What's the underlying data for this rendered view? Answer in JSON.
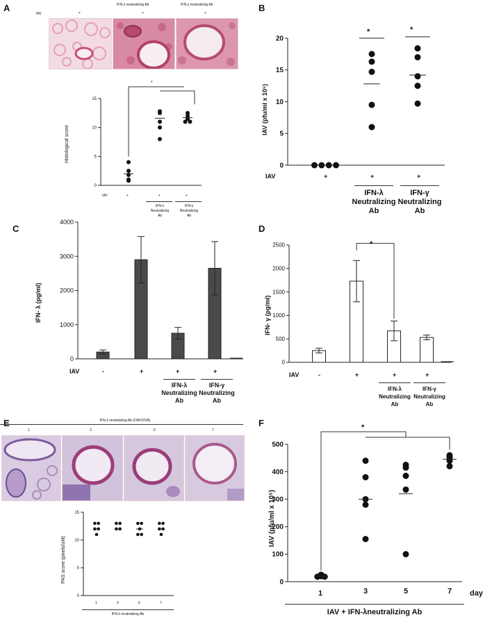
{
  "panels": {
    "A": {
      "label": "A",
      "row_label": "IAV",
      "headers": [
        "",
        "IFN-λ neutralizing Ab",
        "IFN-γ neutralizing Ab"
      ],
      "plus_marks": [
        "+",
        "+",
        "+"
      ],
      "sig": "*",
      "xlabels": [
        "+",
        "+",
        "+"
      ],
      "group_labels": [
        "IFN-λ\nNeutralizing\nAb",
        "IFN-γ\nNeutralizing\nAb"
      ]
    },
    "B": {
      "label": "B",
      "row_label": "IAV",
      "xlabels": [
        "+",
        "+",
        "+"
      ],
      "group_labels": [
        "IFN-λ\nNeutralizing\nAb",
        "IFN-γ\nNeutralizing\nAb"
      ],
      "sig": [
        "*",
        "*"
      ]
    },
    "C": {
      "label": "C",
      "row_label": "IAV",
      "xlabels": [
        "-",
        "+",
        "+",
        "+"
      ],
      "group_labels": [
        "IFN-λ\nNeutralizing\nAb",
        "IFN-γ\nNeutralizing\nAb"
      ]
    },
    "D": {
      "label": "D",
      "row_label": "IAV",
      "xlabels": [
        "-",
        "+",
        "+",
        "+"
      ],
      "group_labels": [
        "IFN-λ\nNeutralizing\nAb",
        "IFN-γ\nNeutralizing\nAb"
      ],
      "sig": "*"
    },
    "E": {
      "label": "E",
      "header": "IFN-λ neutralizing Ab (OAV/OVA)",
      "day_labels": [
        "1",
        "3",
        "5",
        "7"
      ],
      "footer": "IFN-λ neutralizing Ab"
    },
    "F": {
      "label": "F",
      "footer": "IAV + IFN-λneutralizing Ab",
      "day_unit": "day",
      "sig": "*"
    }
  },
  "chart_data": [
    {
      "id": "A",
      "type": "scatter",
      "categories": [
        "IAV",
        "IAV + IFN-λ Neutralizing Ab",
        "IAV + IFN-γ Neutralizing Ab"
      ],
      "points": [
        [
          4.0,
          2.5,
          1.8,
          1.0,
          0.8
        ],
        [
          12.8,
          12.5,
          11.0,
          10.0,
          8.0
        ],
        [
          12.5,
          12.0,
          11.5,
          11.0,
          11.0
        ]
      ],
      "means": [
        2.0,
        11.6,
        11.7
      ],
      "ylabel": "Histological score",
      "ylim": [
        0,
        15
      ],
      "yticks": [
        0,
        5,
        10,
        15
      ]
    },
    {
      "id": "B",
      "type": "scatter",
      "categories": [
        "IAV",
        "IAV + IFN-λ Neutralizing Ab",
        "IAV + IFN-γ Neutralizing Ab"
      ],
      "points": [
        [
          0,
          0,
          0,
          0
        ],
        [
          17.5,
          16.3,
          14.7,
          9.5,
          6.0
        ],
        [
          18.4,
          17.0,
          14.0,
          12.5,
          9.7
        ]
      ],
      "means": [
        0,
        12.8,
        14.2
      ],
      "ylabel": "IAV (pfu/ml x 10⁵)",
      "ylim": [
        0,
        20
      ],
      "yticks": [
        0,
        5,
        10,
        15,
        20
      ]
    },
    {
      "id": "C",
      "type": "bar",
      "categories": [
        "-",
        "+",
        "+ IFN-λ Neutralizing Ab",
        "+ IFN-γ Neutralizing Ab",
        ""
      ],
      "values": [
        200,
        2900,
        750,
        2650,
        0
      ],
      "errors": [
        60,
        680,
        170,
        780,
        0
      ],
      "ylabel": "IFN- λ (pg/ml)",
      "ylim": [
        0,
        4000
      ],
      "yticks": [
        0,
        1000,
        2000,
        3000,
        4000
      ]
    },
    {
      "id": "D",
      "type": "bar",
      "categories": [
        "-",
        "+",
        "+ IFN-λ Neutralizing Ab",
        "+ IFN-γ Neutralizing Ab",
        ""
      ],
      "values": [
        250,
        1730,
        670,
        530,
        0
      ],
      "errors": [
        50,
        440,
        210,
        50,
        0
      ],
      "ylabel": "IFN- γ (pg/ml)",
      "ylim": [
        0,
        2500
      ],
      "yticks": [
        0,
        500,
        1000,
        1500,
        2000,
        2500
      ]
    },
    {
      "id": "E",
      "type": "scatter",
      "categories": [
        "1",
        "3",
        "5",
        "7"
      ],
      "points": [
        [
          13,
          13,
          12,
          12,
          11
        ],
        [
          13,
          13,
          12,
          12
        ],
        [
          13,
          13,
          12,
          11,
          11
        ],
        [
          13,
          13,
          12,
          12,
          11
        ]
      ],
      "means": [
        12,
        12,
        12,
        12
      ],
      "ylabel": "PAS score (pixels/uM)",
      "ylim": [
        0,
        15
      ],
      "yticks": [
        0,
        5,
        10,
        15
      ]
    },
    {
      "id": "F",
      "type": "scatter",
      "categories": [
        "1",
        "3",
        "5",
        "7"
      ],
      "points": [
        [
          25,
          22,
          20,
          18,
          18
        ],
        [
          440,
          380,
          300,
          280,
          155
        ],
        [
          425,
          415,
          385,
          335,
          100
        ],
        [
          460,
          455,
          450,
          440,
          420
        ]
      ],
      "means": [
        20,
        300,
        320,
        445
      ],
      "ylabel": "IAV (pfu/ml x 10⁵)",
      "ylim": [
        0,
        500
      ],
      "yticks": [
        0,
        100,
        200,
        300,
        400,
        500
      ]
    }
  ],
  "colors": {
    "bar_dark": "#4a4a4a",
    "bar_light": "#ffffff",
    "tissue_pink": "#e8a3b6",
    "pas_purple": "#b89ac6"
  }
}
